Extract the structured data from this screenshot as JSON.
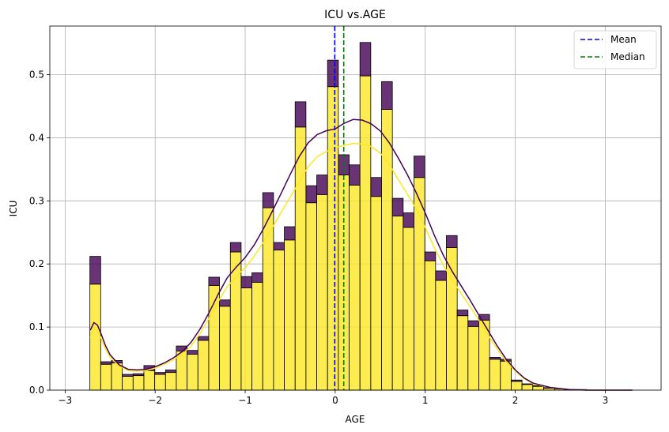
{
  "chart_data": {
    "type": "bar",
    "title": "ICU vs.AGE",
    "xlabel": "AGE",
    "ylabel": "ICU",
    "xlim": [
      -3.17,
      3.62
    ],
    "ylim": [
      0,
      0.577
    ],
    "xticks": [
      -3,
      -2,
      -1,
      0,
      1,
      2,
      3
    ],
    "xtick_labels": [
      "−3",
      "−2",
      "−1",
      "0",
      "1",
      "2",
      "3"
    ],
    "yticks": [
      0.0,
      0.1,
      0.2,
      0.3,
      0.4,
      0.5
    ],
    "ytick_labels": [
      "0.0",
      "0.1",
      "0.2",
      "0.3",
      "0.4",
      "0.5"
    ],
    "grid": true,
    "legend_position": "top-right",
    "stacked": true,
    "bin_start": -2.725,
    "bin_width": 0.12,
    "series": [
      {
        "color": "#fde725",
        "values": [
          0.168,
          0.041,
          0.043,
          0.022,
          0.023,
          0.031,
          0.025,
          0.028,
          0.062,
          0.057,
          0.079,
          0.166,
          0.133,
          0.219,
          0.162,
          0.171,
          0.289,
          0.222,
          0.238,
          0.417,
          0.297,
          0.31,
          0.481,
          0.341,
          0.325,
          0.498,
          0.307,
          0.445,
          0.276,
          0.258,
          0.337,
          0.205,
          0.174,
          0.226,
          0.118,
          0.101,
          0.111,
          0.049,
          0.046,
          0.014,
          0.009,
          0.006,
          0.003,
          0.002,
          0.001,
          0.001,
          0.0,
          0.0,
          0.0,
          0.0,
          0.0,
          0.0
        ]
      },
      {
        "color": "#440154",
        "values": [
          0.044,
          0.004,
          0.004,
          0.003,
          0.003,
          0.008,
          0.003,
          0.004,
          0.008,
          0.006,
          0.006,
          0.013,
          0.01,
          0.015,
          0.018,
          0.015,
          0.024,
          0.012,
          0.021,
          0.04,
          0.027,
          0.031,
          0.042,
          0.032,
          0.032,
          0.053,
          0.03,
          0.044,
          0.028,
          0.023,
          0.034,
          0.014,
          0.015,
          0.019,
          0.009,
          0.009,
          0.009,
          0.003,
          0.003,
          0.002,
          0.001,
          0.001,
          0.001,
          0.0,
          0.0,
          0.0,
          0.0,
          0.0,
          0.0,
          0.0,
          0.0,
          0.0
        ]
      }
    ],
    "kde": [
      {
        "color": "#fde725",
        "x": [
          -2.72,
          -2.68,
          -2.64,
          -2.6,
          -2.55,
          -2.5,
          -2.4,
          -2.3,
          -2.2,
          -2.1,
          -2.0,
          -1.9,
          -1.8,
          -1.7,
          -1.6,
          -1.5,
          -1.4,
          -1.3,
          -1.2,
          -1.1,
          -1.0,
          -0.9,
          -0.8,
          -0.7,
          -0.6,
          -0.5,
          -0.4,
          -0.3,
          -0.2,
          -0.1,
          0.0,
          0.1,
          0.2,
          0.3,
          0.4,
          0.5,
          0.6,
          0.7,
          0.8,
          0.9,
          1.0,
          1.1,
          1.2,
          1.3,
          1.4,
          1.5,
          1.6,
          1.7,
          1.8,
          1.9,
          2.0,
          2.1,
          2.2,
          2.4,
          2.6,
          2.8,
          3.0,
          3.3
        ],
        "y": [
          0.083,
          0.097,
          0.094,
          0.082,
          0.065,
          0.052,
          0.038,
          0.031,
          0.03,
          0.031,
          0.035,
          0.041,
          0.048,
          0.057,
          0.07,
          0.09,
          0.114,
          0.14,
          0.164,
          0.18,
          0.194,
          0.212,
          0.234,
          0.257,
          0.282,
          0.306,
          0.33,
          0.354,
          0.37,
          0.378,
          0.384,
          0.388,
          0.391,
          0.39,
          0.386,
          0.376,
          0.358,
          0.334,
          0.311,
          0.287,
          0.258,
          0.226,
          0.198,
          0.175,
          0.153,
          0.132,
          0.11,
          0.087,
          0.065,
          0.045,
          0.03,
          0.018,
          0.01,
          0.004,
          0.001,
          0.0,
          0.0,
          0.0
        ]
      },
      {
        "color": "#440154",
        "x": [
          -2.72,
          -2.68,
          -2.64,
          -2.6,
          -2.55,
          -2.5,
          -2.4,
          -2.3,
          -2.2,
          -2.1,
          -2.0,
          -1.9,
          -1.8,
          -1.7,
          -1.6,
          -1.5,
          -1.4,
          -1.3,
          -1.2,
          -1.1,
          -1.0,
          -0.9,
          -0.8,
          -0.7,
          -0.6,
          -0.5,
          -0.4,
          -0.3,
          -0.2,
          -0.1,
          0.0,
          0.1,
          0.2,
          0.3,
          0.4,
          0.5,
          0.6,
          0.7,
          0.8,
          0.9,
          1.0,
          1.1,
          1.2,
          1.3,
          1.4,
          1.5,
          1.6,
          1.7,
          1.8,
          1.9,
          2.0,
          2.1,
          2.2,
          2.4,
          2.6,
          2.8,
          3.0,
          3.3
        ],
        "y": [
          0.095,
          0.107,
          0.103,
          0.089,
          0.07,
          0.056,
          0.04,
          0.033,
          0.032,
          0.033,
          0.037,
          0.043,
          0.051,
          0.061,
          0.076,
          0.097,
          0.123,
          0.152,
          0.178,
          0.195,
          0.21,
          0.23,
          0.255,
          0.283,
          0.312,
          0.342,
          0.37,
          0.392,
          0.405,
          0.411,
          0.414,
          0.423,
          0.429,
          0.428,
          0.422,
          0.411,
          0.392,
          0.368,
          0.342,
          0.313,
          0.281,
          0.246,
          0.214,
          0.188,
          0.165,
          0.142,
          0.118,
          0.094,
          0.07,
          0.049,
          0.032,
          0.019,
          0.011,
          0.004,
          0.001,
          0.0,
          0.0,
          0.0
        ]
      }
    ],
    "reference_lines": [
      {
        "name": "Mean",
        "x": -0.005,
        "color": "#0000ff",
        "style": "dashed"
      },
      {
        "name": "Median",
        "x": 0.095,
        "color": "#008000",
        "style": "dashed"
      }
    ]
  }
}
